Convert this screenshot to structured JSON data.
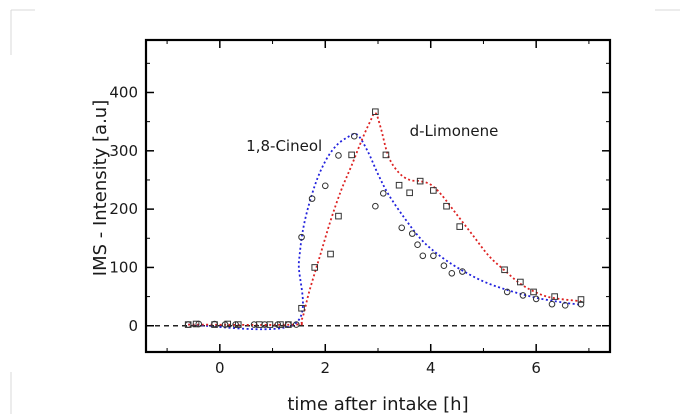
{
  "chart_data": {
    "type": "scatter",
    "title": "",
    "xlabel": "time after intake [h]",
    "ylabel": "IMS - Intensity [a.u]",
    "xlim": [
      -1.4,
      7.4
    ],
    "ylim": [
      -45,
      490
    ],
    "xticks": [
      0,
      2,
      4,
      6
    ],
    "yticks": [
      0,
      100,
      200,
      300,
      400
    ],
    "grid": false,
    "legend": "none",
    "reference_line": {
      "y": 0,
      "style": "dashed",
      "color": "#222222"
    },
    "annotations": [
      {
        "text": "1,8-Cineol",
        "x": 0.5,
        "y": 300
      },
      {
        "text": "d-Limonene",
        "x": 3.6,
        "y": 325
      }
    ],
    "series": [
      {
        "marker": "circle",
        "curve_color": "#2222dd",
        "points": [
          [
            -0.6,
            2
          ],
          [
            -0.4,
            3
          ],
          [
            -0.1,
            3
          ],
          [
            0.1,
            2
          ],
          [
            0.3,
            2
          ],
          [
            0.65,
            2
          ],
          [
            0.85,
            2
          ],
          [
            1.1,
            2
          ],
          [
            1.3,
            2
          ],
          [
            1.45,
            2
          ],
          [
            1.55,
            152
          ],
          [
            1.75,
            218
          ],
          [
            2.0,
            240
          ],
          [
            2.25,
            292
          ],
          [
            2.55,
            325
          ],
          [
            2.95,
            205
          ],
          [
            3.1,
            227
          ],
          [
            3.45,
            168
          ],
          [
            3.65,
            158
          ],
          [
            3.75,
            139
          ],
          [
            3.85,
            120
          ],
          [
            4.05,
            120
          ],
          [
            4.25,
            103
          ],
          [
            4.4,
            90
          ],
          [
            4.6,
            93
          ],
          [
            5.45,
            58
          ],
          [
            5.75,
            52
          ],
          [
            6.0,
            46
          ],
          [
            6.3,
            37
          ],
          [
            6.55,
            35
          ],
          [
            6.85,
            37
          ]
        ],
        "fit_curve": [
          [
            -0.6,
            2
          ],
          [
            1.4,
            2
          ],
          [
            1.5,
            110
          ],
          [
            1.6,
            175
          ],
          [
            1.8,
            240
          ],
          [
            2.0,
            282
          ],
          [
            2.2,
            308
          ],
          [
            2.4,
            322
          ],
          [
            2.6,
            328
          ],
          [
            2.8,
            300
          ],
          [
            3.0,
            260
          ],
          [
            3.2,
            225
          ],
          [
            3.5,
            185
          ],
          [
            3.8,
            150
          ],
          [
            4.1,
            125
          ],
          [
            4.5,
            100
          ],
          [
            5.0,
            76
          ],
          [
            5.5,
            60
          ],
          [
            6.0,
            48
          ],
          [
            6.5,
            40
          ],
          [
            6.85,
            36
          ]
        ]
      },
      {
        "marker": "square",
        "curve_color": "#dd2222",
        "points": [
          [
            -0.6,
            2
          ],
          [
            -0.45,
            3
          ],
          [
            -0.1,
            2
          ],
          [
            0.15,
            3
          ],
          [
            0.35,
            2
          ],
          [
            0.75,
            2
          ],
          [
            0.95,
            2
          ],
          [
            1.15,
            2
          ],
          [
            1.3,
            2
          ],
          [
            1.55,
            30
          ],
          [
            1.8,
            100
          ],
          [
            2.1,
            123
          ],
          [
            2.25,
            188
          ],
          [
            2.5,
            293
          ],
          [
            2.95,
            367
          ],
          [
            3.15,
            293
          ],
          [
            3.4,
            241
          ],
          [
            3.6,
            228
          ],
          [
            3.8,
            248
          ],
          [
            4.05,
            232
          ],
          [
            4.3,
            205
          ],
          [
            4.55,
            170
          ],
          [
            5.4,
            96
          ],
          [
            5.7,
            75
          ],
          [
            5.95,
            58
          ],
          [
            6.35,
            50
          ],
          [
            6.85,
            45
          ]
        ],
        "fit_curve": [
          [
            -0.6,
            2
          ],
          [
            1.4,
            2
          ],
          [
            1.55,
            10
          ],
          [
            1.7,
            60
          ],
          [
            1.9,
            120
          ],
          [
            2.1,
            180
          ],
          [
            2.3,
            232
          ],
          [
            2.5,
            275
          ],
          [
            2.7,
            320
          ],
          [
            2.85,
            350
          ],
          [
            2.95,
            365
          ],
          [
            3.05,
            340
          ],
          [
            3.2,
            290
          ],
          [
            3.4,
            262
          ],
          [
            3.6,
            250
          ],
          [
            3.8,
            248
          ],
          [
            4.0,
            242
          ],
          [
            4.2,
            225
          ],
          [
            4.5,
            190
          ],
          [
            4.8,
            155
          ],
          [
            5.1,
            120
          ],
          [
            5.4,
            95
          ],
          [
            5.7,
            72
          ],
          [
            6.0,
            57
          ],
          [
            6.3,
            48
          ],
          [
            6.85,
            42
          ]
        ]
      }
    ]
  }
}
